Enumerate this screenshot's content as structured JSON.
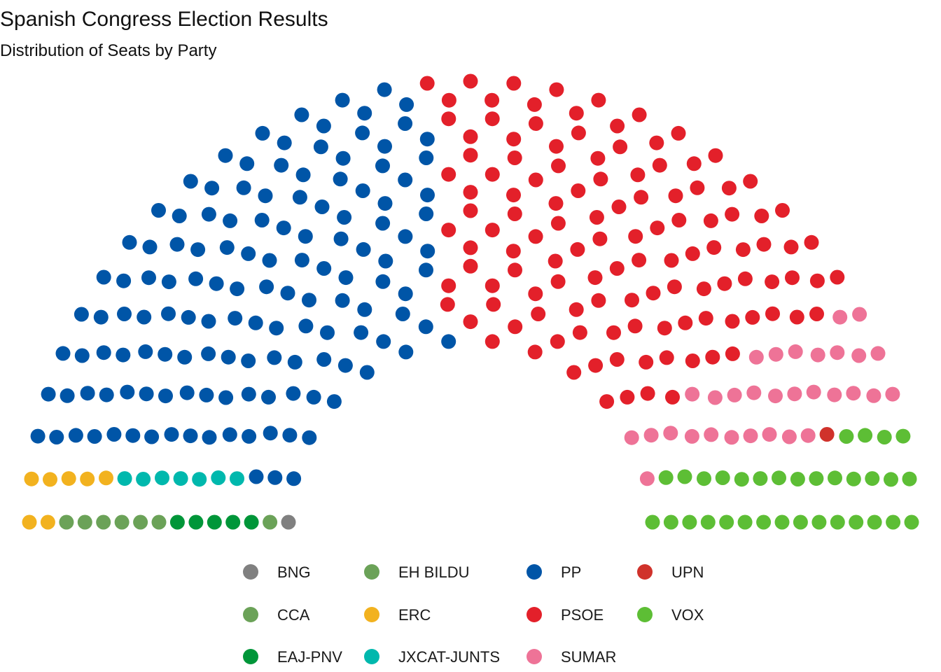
{
  "chart_data": {
    "type": "parliament",
    "title": "Spanish Congress Election Results",
    "subtitle": "Distribution of Seats by Party",
    "total_seats": 350,
    "series": [
      {
        "name": "BNG",
        "seats": 1,
        "color": "#808080"
      },
      {
        "name": "CCA",
        "seats": 1,
        "color": "#6ba258"
      },
      {
        "name": "EAJ-PNV",
        "seats": 5,
        "color": "#009639"
      },
      {
        "name": "EH BILDU",
        "seats": 6,
        "color": "#6ba258"
      },
      {
        "name": "ERC",
        "seats": 7,
        "color": "#f2b21f"
      },
      {
        "name": "JXCAT-JUNTS",
        "seats": 7,
        "color": "#00b8ad"
      },
      {
        "name": "PP",
        "seats": 137,
        "color": "#0055a7"
      },
      {
        "name": "PSOE",
        "seats": 121,
        "color": "#e3202a"
      },
      {
        "name": "SUMAR",
        "seats": 31,
        "color": "#ee7397"
      },
      {
        "name": "UPN",
        "seats": 1,
        "color": "#d0322b"
      },
      {
        "name": "VOX",
        "seats": 33,
        "color": "#5dbe35"
      }
    ],
    "legend": {
      "position": "bottom",
      "columns": 4
    }
  }
}
